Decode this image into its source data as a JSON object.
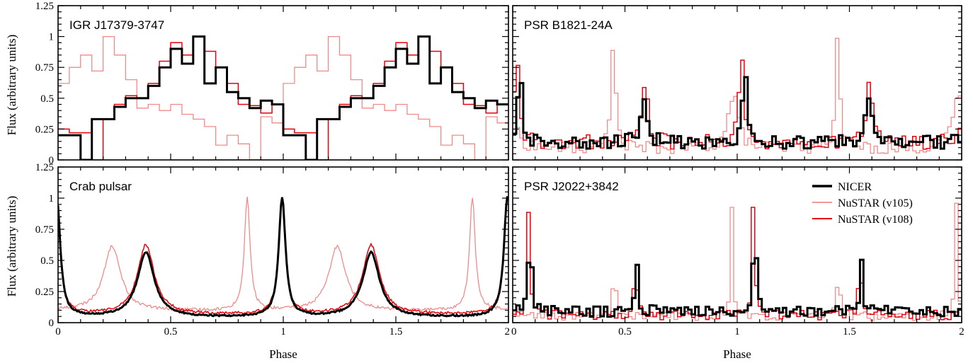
{
  "figure": {
    "xlabel": "Phase",
    "ylabel": "Flux (arbitrary units)",
    "legend": {
      "placement": "top-right of lower-right panel",
      "panel": 3
    },
    "x_tick_labels": [
      "0",
      "0.5",
      "1",
      "1.5",
      "2"
    ],
    "y_tick_labels": [
      "0",
      "0.25",
      "0.5",
      "0.75",
      "1",
      "1.25"
    ]
  },
  "series_styles": [
    {
      "name": "NICER",
      "color": "#000000"
    },
    {
      "name": "NuSTAR (v105)",
      "color": "#f08a8a"
    },
    {
      "name": "NuSTAR (v108)",
      "color": "#e8000b"
    }
  ],
  "chart_data": [
    {
      "type": "line",
      "title": "IGR J17379-3747",
      "xlabel": "",
      "ylabel": "Flux (arbitrary units)",
      "xlim": [
        0,
        2
      ],
      "ylim": [
        0,
        1.25
      ],
      "step": true,
      "x": [
        0.0,
        0.05,
        0.1,
        0.15,
        0.2,
        0.25,
        0.3,
        0.35,
        0.4,
        0.45,
        0.5,
        0.55,
        0.6,
        0.65,
        0.7,
        0.75,
        0.8,
        0.85,
        0.9,
        0.95
      ],
      "series": [
        {
          "name": "NICER",
          "values": [
            0.2,
            0.2,
            0.0,
            0.33,
            0.33,
            0.43,
            0.5,
            0.5,
            0.6,
            0.75,
            0.9,
            0.78,
            1.0,
            0.62,
            0.75,
            0.55,
            0.5,
            0.42,
            0.48,
            0.45
          ]
        },
        {
          "name": "NuSTAR (v105)",
          "values": [
            0.62,
            0.75,
            0.85,
            0.72,
            1.0,
            0.85,
            0.65,
            0.42,
            0.45,
            0.4,
            0.45,
            0.37,
            0.33,
            0.27,
            0.12,
            0.2,
            0.13,
            0.0,
            0.35,
            0.3
          ]
        },
        {
          "name": "NuSTAR (v108)",
          "values": [
            0.25,
            0.22,
            0.22,
            0.0,
            0.33,
            0.45,
            0.52,
            0.5,
            0.62,
            0.8,
            0.95,
            0.85,
            1.0,
            0.88,
            0.75,
            0.62,
            0.45,
            0.44,
            0.38,
            0.45
          ]
        }
      ]
    },
    {
      "type": "line",
      "title": "PSR B1821-24A",
      "xlabel": "",
      "ylabel": "",
      "xlim": [
        0,
        2
      ],
      "ylim": [
        0,
        1.25
      ],
      "step": true,
      "peak_model": {
        "NICER": {
          "base": 0.14,
          "noise": 0.055,
          "peaks": [
            [
              0.025,
              0.86,
              0.008
            ],
            [
              0.575,
              0.42,
              0.015
            ]
          ]
        },
        "NuSTAR (v105)": {
          "base": 0.09,
          "noise": 0.05,
          "peaks": [
            [
              0.44,
              0.88,
              0.012
            ],
            [
              0.975,
              0.45,
              0.025
            ]
          ]
        },
        "NuSTAR (v108)": {
          "base": 0.14,
          "noise": 0.06,
          "peaks": [
            [
              0.01,
              0.86,
              0.01
            ],
            [
              0.583,
              0.48,
              0.015
            ]
          ]
        }
      }
    },
    {
      "type": "line",
      "title": "Crab pulsar",
      "xlabel": "Phase",
      "ylabel": "Flux (arbitrary units)",
      "xlim": [
        0,
        2
      ],
      "ylim": [
        0,
        1.25
      ],
      "peak_model": {
        "NICER": {
          "base": 0.04,
          "noise": 0.006,
          "peaks": [
            [
              0.995,
              0.96,
              0.018
            ],
            [
              0.39,
              0.52,
              0.045
            ]
          ]
        },
        "NuSTAR (v105)": {
          "base": 0.09,
          "noise": 0.012,
          "peaks": [
            [
              0.84,
              0.91,
              0.015
            ],
            [
              0.24,
              0.52,
              0.045
            ]
          ]
        },
        "NuSTAR (v108)": {
          "base": 0.06,
          "noise": 0.01,
          "peaks": [
            [
              0.995,
              0.94,
              0.018
            ],
            [
              0.39,
              0.56,
              0.045
            ]
          ]
        }
      }
    },
    {
      "type": "line",
      "title": "PSR J2022+3842",
      "xlabel": "Phase",
      "ylabel": "",
      "xlim": [
        0,
        2
      ],
      "ylim": [
        0,
        1.25
      ],
      "step": true,
      "peak_model": {
        "NICER": {
          "base": 0.09,
          "noise": 0.045,
          "peaks": [
            [
              0.07,
              0.91,
              0.007
            ],
            [
              0.545,
              0.41,
              0.007
            ]
          ]
        },
        "NuSTAR (v105)": {
          "base": 0.05,
          "noise": 0.035,
          "peaks": [
            [
              0.97,
              0.95,
              0.006
            ],
            [
              0.445,
              0.55,
              0.006
            ]
          ]
        },
        "NuSTAR (v108)": {
          "base": 0.06,
          "noise": 0.04,
          "peaks": [
            [
              0.065,
              0.94,
              0.007
            ],
            [
              0.54,
              0.45,
              0.007
            ]
          ]
        }
      }
    }
  ]
}
